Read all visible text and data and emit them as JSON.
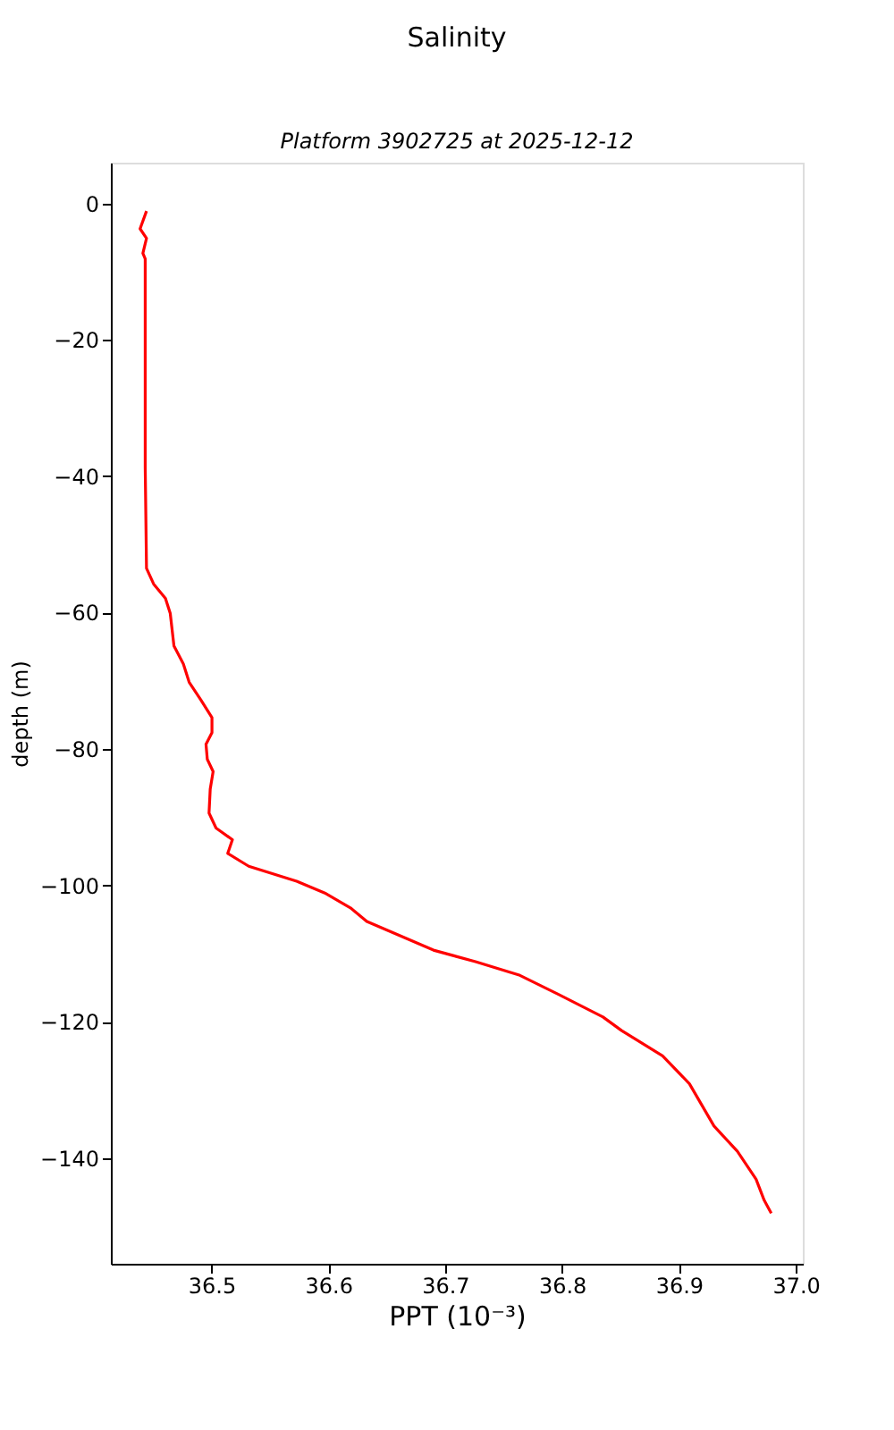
{
  "chart_data": {
    "type": "line",
    "title": "Salinity",
    "subtitle": "Platform 3902725 at 2025-12-12",
    "xlabel": "PPT (10⁻³)",
    "ylabel": "depth (m)",
    "series": [
      {
        "color": "#ff0000",
        "x": [
          36.4445,
          36.439,
          36.4445,
          36.4414,
          36.4434,
          36.4434,
          36.4445,
          36.4506,
          36.4607,
          36.4648,
          36.468,
          36.476,
          36.481,
          36.491,
          36.5005,
          36.5005,
          36.4954,
          36.4965,
          36.5015,
          36.499,
          36.498,
          36.504,
          36.518,
          36.514,
          36.532,
          36.573,
          36.598,
          36.619,
          36.633,
          36.69,
          36.726,
          36.764,
          36.797,
          36.835,
          36.851,
          36.886,
          36.909,
          36.93,
          36.95,
          36.966,
          36.973,
          36.979
        ],
        "values": [
          -1.1,
          -3.7,
          -5.1,
          -7.3,
          -8.1,
          -38.7,
          -53.5,
          -55.8,
          -57.9,
          -60.1,
          -64.9,
          -67.5,
          -70.2,
          -72.8,
          -75.4,
          -77.6,
          -79.3,
          -81.5,
          -83.3,
          -85.9,
          -89.4,
          -91.6,
          -93.3,
          -95.3,
          -97.2,
          -99.4,
          -101.2,
          -103.3,
          -105.3,
          -109.5,
          -111.2,
          -113.2,
          -116.0,
          -119.3,
          -121.3,
          -125.0,
          -129.1,
          -135.3,
          -139.0,
          -143.1,
          -146.2,
          -148.1
        ]
      }
    ],
    "xlim": [
      36.414,
      37.006
    ],
    "ylim": [
      -155.5,
      6.0
    ],
    "xticks": [
      36.5,
      36.6,
      36.7,
      36.8,
      36.9,
      {
        "value": 37.0,
        "label": "37.0"
      }
    ],
    "yticks": [
      0,
      {
        "value": -20,
        "label": "−20"
      },
      {
        "value": -40,
        "label": "−40"
      },
      {
        "value": -60,
        "label": "−60"
      },
      {
        "value": -80,
        "label": "−80"
      },
      {
        "value": -100,
        "label": "−100"
      },
      {
        "value": -120,
        "label": "−120"
      },
      {
        "value": -140,
        "label": "−140"
      }
    ],
    "grid": false
  }
}
